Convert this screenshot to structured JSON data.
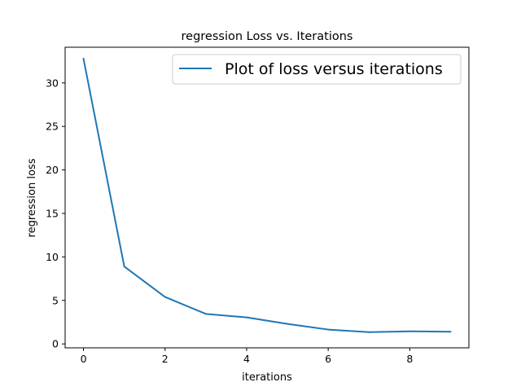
{
  "chart_data": {
    "type": "line",
    "title": "regression Loss vs. Iterations",
    "xlabel": "iterations",
    "ylabel": "regression loss",
    "xlim": [
      -0.45,
      9.45
    ],
    "ylim": [
      -0.45,
      34.1
    ],
    "xticks": [
      0,
      2,
      4,
      6,
      8
    ],
    "yticks": [
      0,
      5,
      10,
      15,
      20,
      25,
      30
    ],
    "grid": false,
    "legend": {
      "position": "top-right"
    },
    "series": [
      {
        "name": "Plot of loss versus iterations",
        "color": "#1f77b4",
        "x": [
          0,
          1,
          2,
          3,
          4,
          5,
          6,
          7,
          8,
          9
        ],
        "y": [
          32.8,
          8.9,
          5.4,
          3.45,
          3.05,
          2.3,
          1.65,
          1.35,
          1.45,
          1.4
        ]
      }
    ]
  }
}
